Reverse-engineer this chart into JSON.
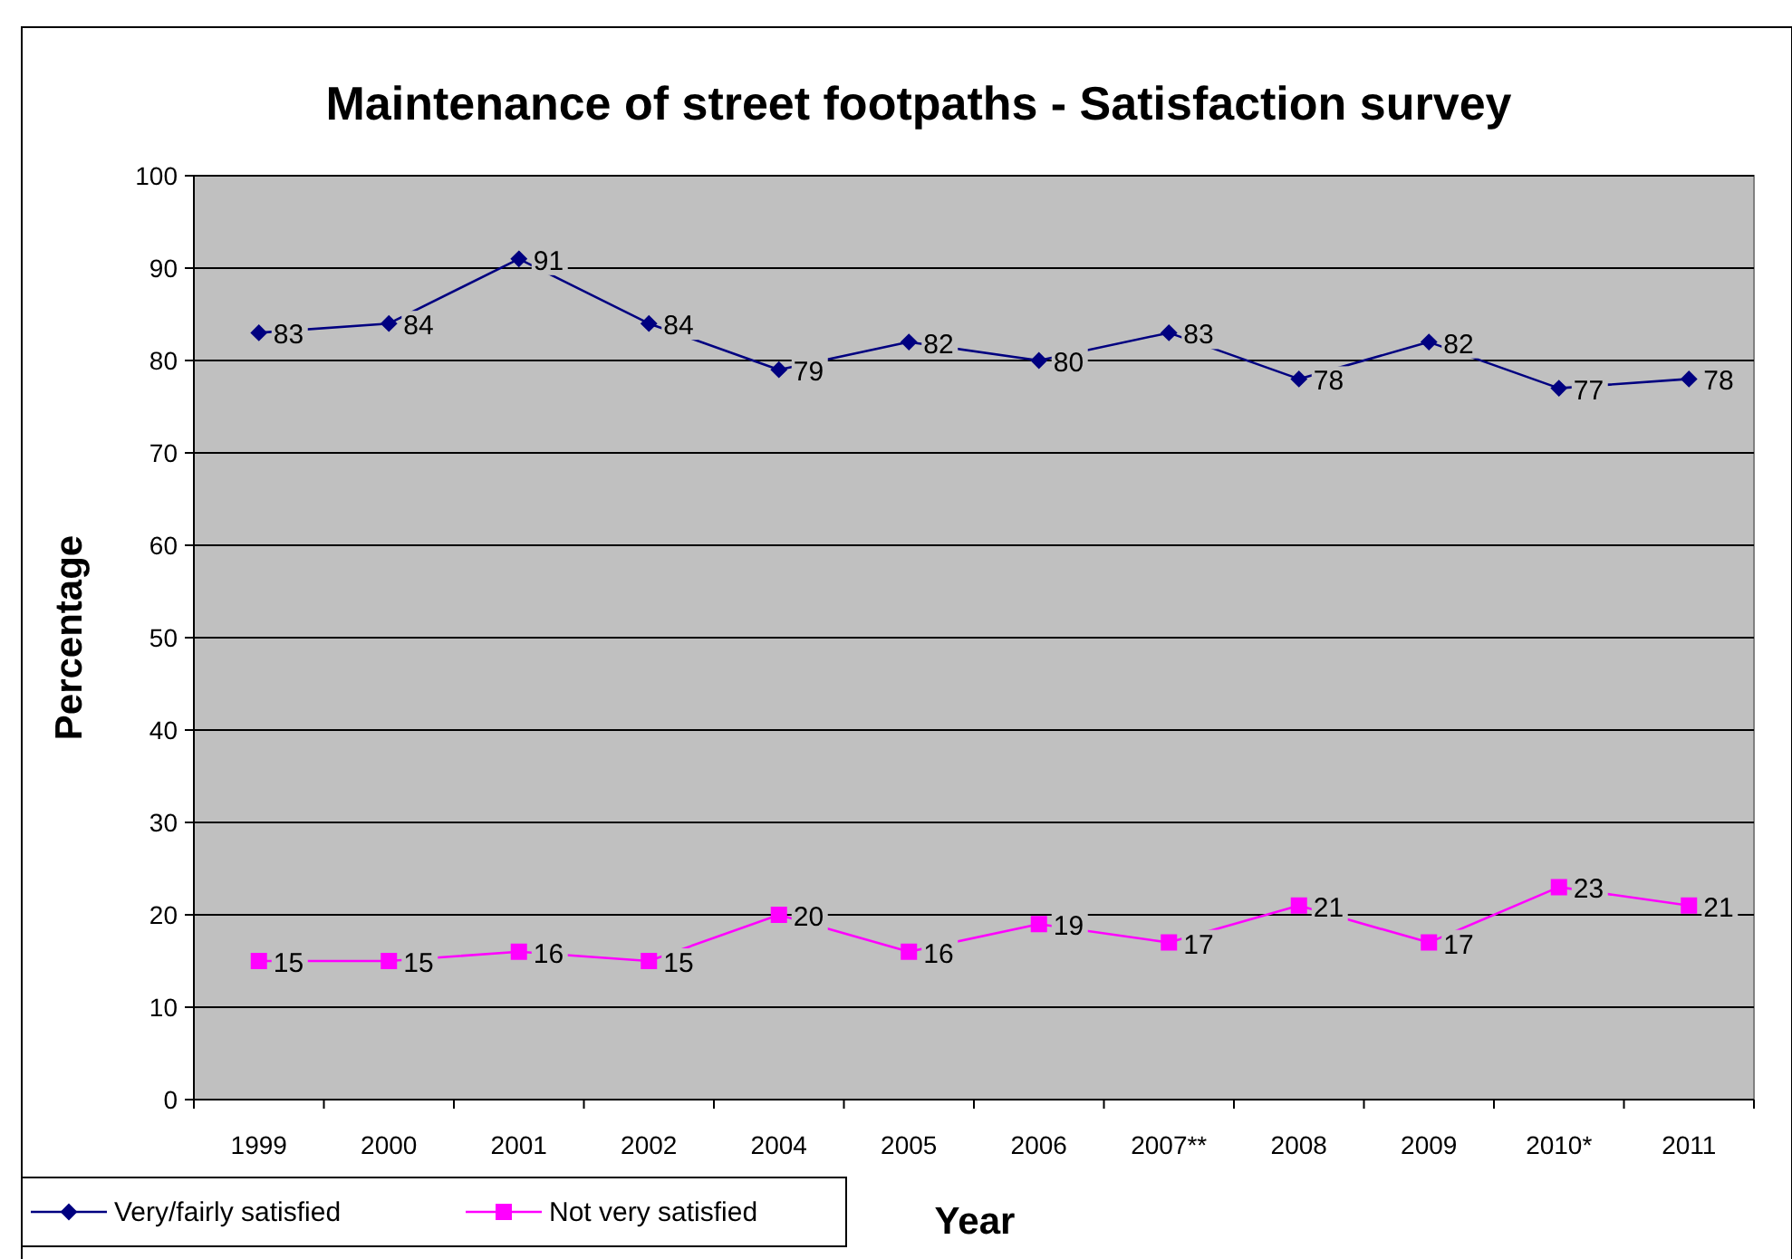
{
  "chart_data": {
    "type": "line",
    "title": "Maintenance of street footpaths - Satisfaction survey",
    "xlabel": "Year",
    "ylabel": "Percentage",
    "categories": [
      "1999",
      "2000",
      "2001",
      "2002",
      "2004",
      "2005",
      "2006",
      "2007**",
      "2008",
      "2009",
      "2010*",
      "2011"
    ],
    "series": [
      {
        "name": "Very/fairly satisfied",
        "color": "#000080",
        "marker": "diamond",
        "values": [
          83,
          84,
          91,
          84,
          79,
          82,
          80,
          83,
          78,
          82,
          77,
          78
        ]
      },
      {
        "name": "Not very satisfied",
        "color": "#ff00ff",
        "marker": "square",
        "values": [
          15,
          15,
          16,
          15,
          20,
          16,
          19,
          17,
          21,
          17,
          23,
          21
        ]
      }
    ],
    "ylim": [
      0,
      100
    ],
    "yticks": [
      0,
      10,
      20,
      30,
      40,
      50,
      60,
      70,
      80,
      90,
      100
    ],
    "grid": "y",
    "data_labels": true,
    "legend": "bottom left"
  }
}
